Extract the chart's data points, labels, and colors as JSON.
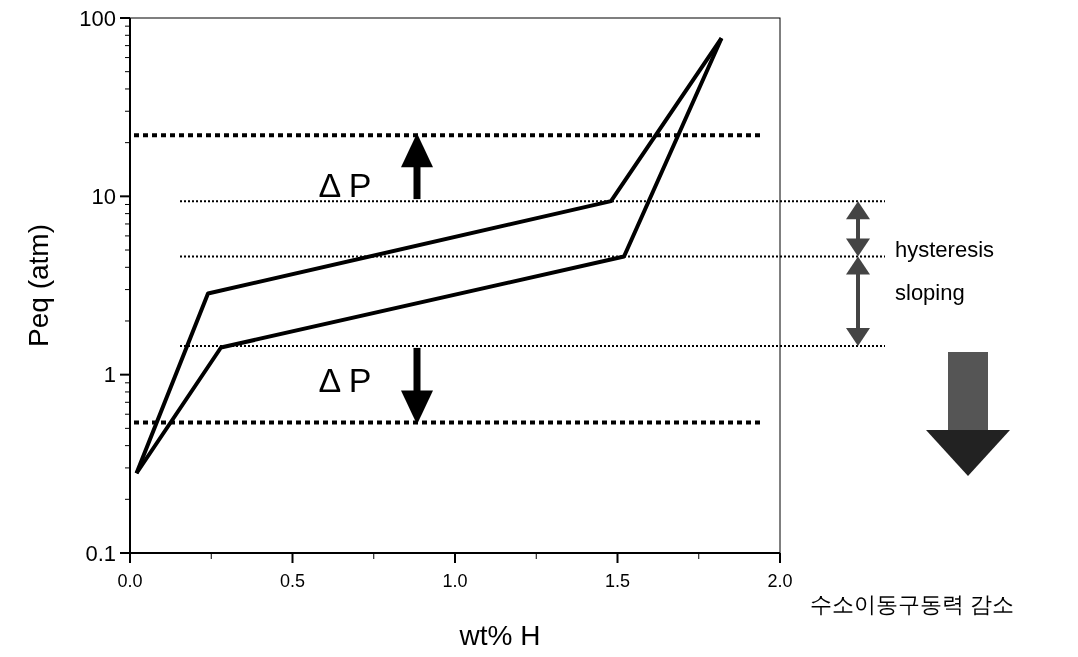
{
  "chart_data": {
    "type": "line",
    "xlabel": "wt% H",
    "ylabel": "Peq (atm)",
    "log": "y",
    "xlim": [
      0,
      2.0
    ],
    "xticks": [
      {
        "value": 0,
        "label": "0.0"
      },
      0.5,
      {
        "value": 1,
        "label": "1.0"
      },
      1.5,
      {
        "value": 2,
        "label": "2.0"
      }
    ],
    "ylim": [
      0.1,
      100
    ],
    "yticks": [
      0.1,
      1,
      10,
      100
    ],
    "series": [
      {
        "color": "#000000",
        "x": [
          0.02,
          0.24,
          1.48,
          1.82
        ],
        "values": [
          0.28,
          2.85,
          9.4,
          77
        ]
      },
      {
        "color": "#000000",
        "x": [
          0.02,
          0.28,
          1.52,
          1.82
        ],
        "values": [
          0.28,
          1.42,
          4.6,
          77
        ]
      }
    ],
    "ref_lines": [
      {
        "axis": "y",
        "value": 22,
        "color": "#000000",
        "line_style": "dashed"
      },
      {
        "axis": "y",
        "value": 9.4,
        "color": "#000000",
        "line_style": "dotted"
      },
      {
        "axis": "y",
        "value": 4.6,
        "color": "#000000",
        "line_style": "dotted"
      },
      {
        "axis": "y",
        "value": 1.45,
        "color": "#000000",
        "line_style": "dotted"
      },
      {
        "axis": "y",
        "value": 0.54,
        "color": "#000000",
        "line_style": "dashed"
      }
    ],
    "annotations": [
      "Δ P",
      "Δ P",
      "hysteresis",
      "sloping",
      "수소이동구동력 감소"
    ],
    "grid": false,
    "marker": "none",
    "line_style": "solid"
  }
}
